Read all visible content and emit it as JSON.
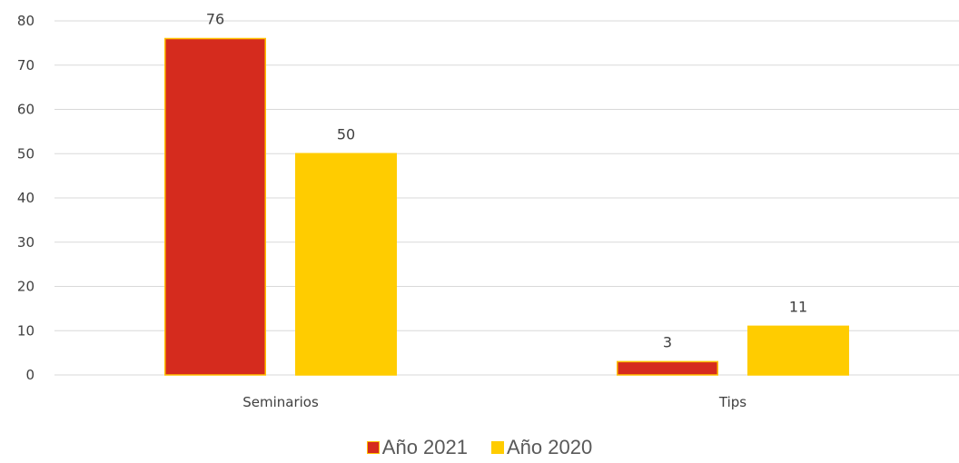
{
  "chart_data": {
    "type": "bar",
    "categories": [
      "Seminarios",
      "Tips"
    ],
    "series": [
      {
        "name": "Año 2021",
        "values": [
          76,
          3
        ],
        "color": "#D52B1E",
        "edge": "#FFC000"
      },
      {
        "name": "Año 2020",
        "values": [
          50,
          11
        ],
        "color": "#FFCC00",
        "edge": "#FFCC00"
      }
    ],
    "yticks": [
      0,
      10,
      20,
      30,
      40,
      50,
      60,
      70,
      80
    ],
    "ylim": [
      0,
      80
    ],
    "grid": true,
    "gridColor": "#D9D9D9",
    "legend": "bottom",
    "title": "",
    "xlabel": "",
    "ylabel": ""
  }
}
